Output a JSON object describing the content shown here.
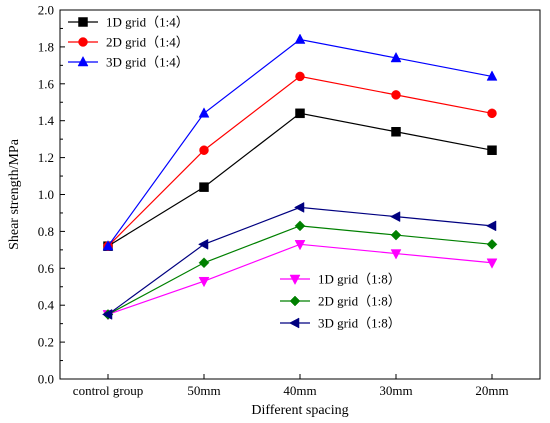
{
  "chart_data": {
    "type": "line",
    "categories": [
      "control group",
      "50mm",
      "40mm",
      "30mm",
      "20mm"
    ],
    "xlabel": "Different spacing",
    "ylabel": "Shear strength/MPa",
    "ylim": [
      0.0,
      2.0
    ],
    "yticks": [
      "0.0",
      "0.2",
      "0.4",
      "0.6",
      "0.8",
      "1.0",
      "1.2",
      "1.4",
      "1.6",
      "1.8",
      "2.0"
    ],
    "grid": false,
    "series": [
      {
        "name": "1D grid（1:4）",
        "values": [
          0.72,
          1.04,
          1.44,
          1.34,
          1.24
        ],
        "color": "#000000",
        "marker": "square"
      },
      {
        "name": "2D grid（1:4）",
        "values": [
          0.72,
          1.24,
          1.64,
          1.54,
          1.44
        ],
        "color": "#ff0000",
        "marker": "circle"
      },
      {
        "name": "3D grid（1:4）",
        "values": [
          0.72,
          1.44,
          1.84,
          1.74,
          1.64
        ],
        "color": "#0000ff",
        "marker": "triangle-up"
      },
      {
        "name": "1D grid（1:8）",
        "values": [
          0.35,
          0.53,
          0.73,
          0.68,
          0.63
        ],
        "color": "#ff00ff",
        "marker": "triangle-down"
      },
      {
        "name": "2D grid（1:8）",
        "values": [
          0.35,
          0.63,
          0.83,
          0.78,
          0.73
        ],
        "color": "#008000",
        "marker": "diamond"
      },
      {
        "name": "3D grid（1:8）",
        "values": [
          0.35,
          0.73,
          0.93,
          0.88,
          0.83
        ],
        "color": "#000080",
        "marker": "triangle-left"
      }
    ],
    "legends": [
      {
        "placement": "top-left",
        "series": [
          0,
          1,
          2
        ]
      },
      {
        "placement": "bottom-right",
        "series": [
          3,
          4,
          5
        ]
      }
    ]
  }
}
